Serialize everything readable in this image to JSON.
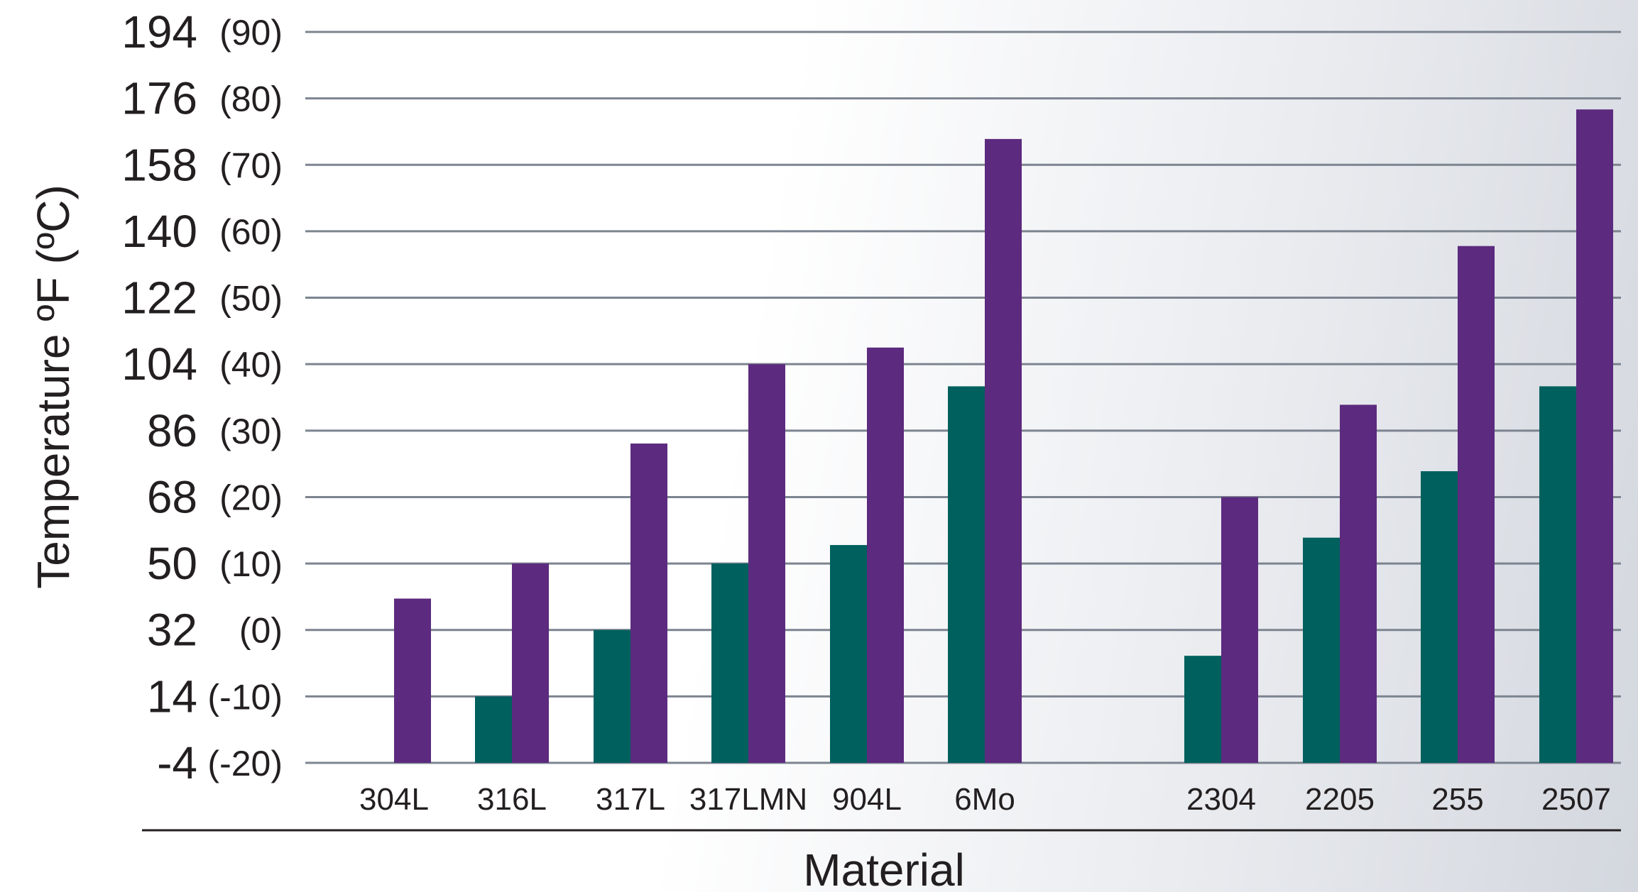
{
  "chart_data": {
    "type": "bar",
    "xlabel": "Material",
    "ylabel": "Temperature ºF (ºC)",
    "ylim": [
      -4,
      194
    ],
    "y_ticks": [
      {
        "f": "194",
        "c": "(90)",
        "value": 194
      },
      {
        "f": "176",
        "c": "(80)",
        "value": 176
      },
      {
        "f": "158",
        "c": "(70)",
        "value": 158
      },
      {
        "f": "140",
        "c": "(60)",
        "value": 140
      },
      {
        "f": "122",
        "c": "(50)",
        "value": 122
      },
      {
        "f": "104",
        "c": "(40)",
        "value": 104
      },
      {
        "f": "86",
        "c": "(30)",
        "value": 86
      },
      {
        "f": "68",
        "c": "(20)",
        "value": 68
      },
      {
        "f": "50",
        "c": "(10)",
        "value": 50
      },
      {
        "f": "32",
        "c": "(0)",
        "value": 32
      },
      {
        "f": "14",
        "c": "(-10)",
        "value": 14
      },
      {
        "f": "-4",
        "c": "(-20)",
        "value": -4
      }
    ],
    "categories": [
      "304L",
      "316L",
      "317L",
      "317LMN",
      "904L",
      "6Mo",
      "2304",
      "2205",
      "255",
      "2507"
    ],
    "series": [
      {
        "color": "#00605e",
        "values": [
          null,
          14,
          32,
          50,
          55,
          98,
          25,
          57,
          75,
          98
        ]
      },
      {
        "color": "#5c2a7e",
        "values": [
          40.5,
          50,
          82.5,
          104,
          108.5,
          165,
          68,
          93,
          136,
          173
        ]
      }
    ],
    "grid": true,
    "legend": "none"
  }
}
